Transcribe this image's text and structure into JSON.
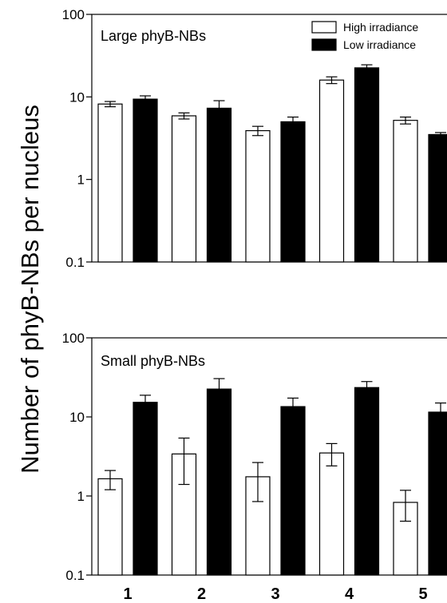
{
  "chart_data": {
    "type": "bar",
    "ylabel": "Number of phyB-NBs per nucleus",
    "yscale": "log",
    "categories": [
      "1",
      "2",
      "3",
      "4",
      "5"
    ],
    "legend": {
      "position": "top-right",
      "entries": [
        {
          "name": "High irradiance",
          "fill": "#ffffff"
        },
        {
          "name": "Low irradiance",
          "fill": "#000000"
        }
      ]
    },
    "panels": [
      {
        "title": "Large phyB-NBs",
        "ylim": [
          0.1,
          100
        ],
        "yticks": [
          "0.1",
          "1",
          "10",
          "100"
        ],
        "series": [
          {
            "name": "High irradiance",
            "values": [
              8.2,
              5.9,
              3.9,
              16.0,
              5.2
            ],
            "errors": [
              0.6,
              0.5,
              0.5,
              1.5,
              0.5
            ]
          },
          {
            "name": "Low irradiance",
            "values": [
              9.4,
              7.3,
              5.0,
              22.5,
              3.5
            ],
            "errors": [
              0.9,
              1.7,
              0.7,
              2.0,
              0.2
            ]
          }
        ]
      },
      {
        "title": "Small phyB-NBs",
        "ylim": [
          0.1,
          100
        ],
        "yticks": [
          "0.1",
          "1",
          "10",
          "100"
        ],
        "series": [
          {
            "name": "High irradiance",
            "values": [
              1.65,
              3.4,
              1.75,
              3.5,
              0.83
            ],
            "errors": [
              0.45,
              2.0,
              0.9,
              1.1,
              0.35
            ]
          },
          {
            "name": "Low irradiance",
            "values": [
              15.3,
              22.5,
              13.5,
              23.5,
              11.5
            ],
            "errors": [
              3.5,
              8.0,
              3.8,
              4.5,
              3.5
            ]
          }
        ]
      }
    ],
    "show_xticks_on": "bottom"
  }
}
